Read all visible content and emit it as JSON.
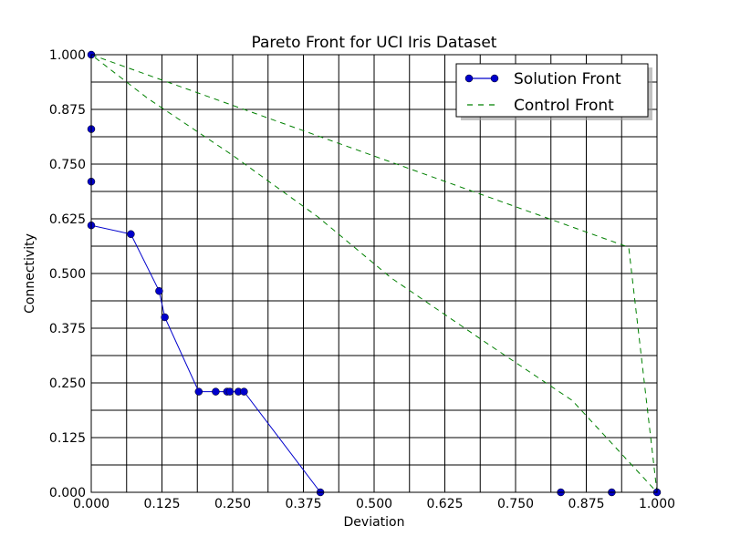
{
  "chart_data": {
    "type": "line",
    "title": "Pareto Front for UCI Iris Dataset",
    "xlabel": "Deviation",
    "ylabel": "Connectivity",
    "xlim": [
      0,
      1
    ],
    "ylim": [
      0,
      1
    ],
    "x_ticks": [
      "0.000",
      "0.125",
      "0.250",
      "0.375",
      "0.500",
      "0.625",
      "0.750",
      "0.875",
      "1.000"
    ],
    "y_ticks": [
      "0.000",
      "0.125",
      "0.250",
      "0.375",
      "0.500",
      "0.625",
      "0.750",
      "0.875",
      "1.000"
    ],
    "grid": true,
    "legend_position": "top-right",
    "series": [
      {
        "name": "Solution Front",
        "style": "solid line with circle markers",
        "color": "#0000cc",
        "points": [
          [
            0.0,
            1.0
          ],
          [
            0.0,
            0.83
          ],
          [
            0.0,
            0.71
          ],
          [
            0.0,
            0.61
          ],
          [
            0.07,
            0.59
          ],
          [
            0.12,
            0.46
          ],
          [
            0.13,
            0.4
          ],
          [
            0.19,
            0.23
          ],
          [
            0.22,
            0.23
          ],
          [
            0.24,
            0.23
          ],
          [
            0.245,
            0.23
          ],
          [
            0.26,
            0.23
          ],
          [
            0.27,
            0.23
          ],
          [
            0.405,
            0.0
          ],
          [
            0.83,
            0.0
          ],
          [
            0.92,
            0.0
          ],
          [
            1.0,
            0.0
          ]
        ]
      },
      {
        "name": "Control Front",
        "style": "dashed line",
        "color": "#008000",
        "points": [
          [
            0.0,
            1.0
          ],
          [
            0.95,
            0.56
          ],
          [
            1.0,
            0.0
          ],
          [
            0.85,
            0.21
          ],
          [
            0.7,
            0.34
          ],
          [
            0.53,
            0.49
          ],
          [
            0.4,
            0.63
          ],
          [
            0.25,
            0.77
          ],
          [
            0.1,
            0.9
          ],
          [
            0.0,
            1.0
          ]
        ]
      }
    ]
  }
}
